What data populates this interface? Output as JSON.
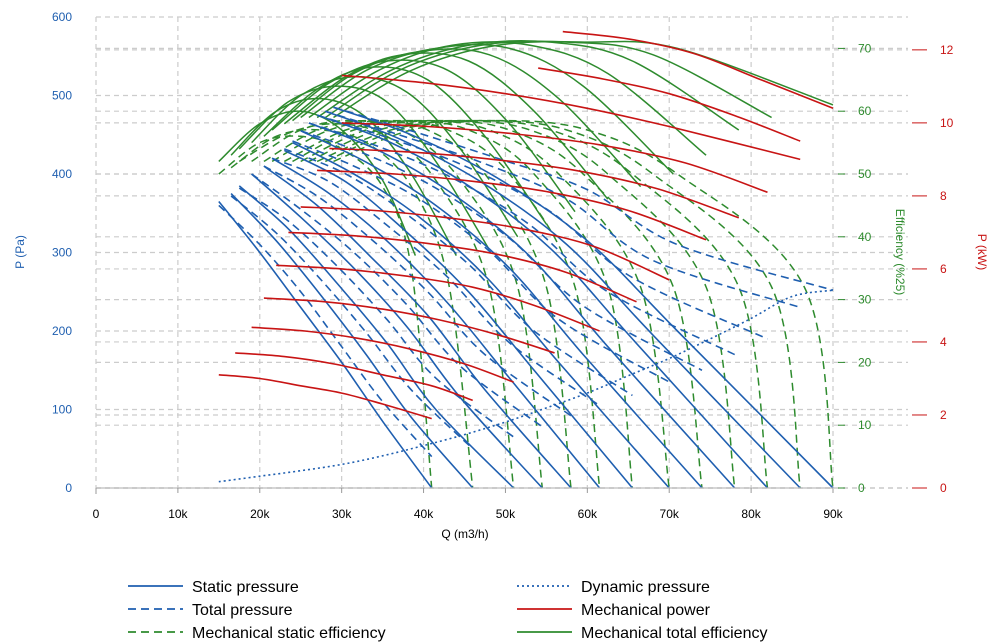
{
  "chart_data": {
    "type": "line",
    "xlabel": "Q (m3/h)",
    "ylabel_left": "P (Pa)",
    "ylabel_eff": "Efficiency (%25)",
    "ylabel_power": "P (kW)",
    "xlim": [
      0,
      90000
    ],
    "ylim_pressure": [
      0,
      600
    ],
    "ylim_eff": [
      0,
      75
    ],
    "ylim_power": [
      0,
      12.9
    ],
    "x_ticks": [
      0,
      10000,
      20000,
      30000,
      40000,
      50000,
      60000,
      70000,
      80000,
      90000
    ],
    "x_tick_labels": [
      "0",
      "10k",
      "20k",
      "30k",
      "40k",
      "50k",
      "60k",
      "70k",
      "80k",
      "90k"
    ],
    "y_ticks_pressure": [
      0,
      100,
      200,
      300,
      400,
      500,
      600
    ],
    "y_ticks_eff": [
      0,
      10,
      20,
      30,
      40,
      50,
      60,
      70
    ],
    "y_ticks_power": [
      0,
      2,
      4,
      6,
      8,
      10,
      12
    ],
    "grid": true,
    "colors": {
      "pressure": "#1f5fb0",
      "efficiency": "#2e8b2e",
      "power": "#c81414",
      "grid": "#cccccc",
      "eff_axis": "#2e8b2e",
      "power_axis": "#c81414",
      "pressure_axis": "#1f5fb0"
    },
    "legend": {
      "position": "bottom",
      "entries": [
        {
          "label": "Static pressure",
          "color": "#1f5fb0",
          "dash": "solid"
        },
        {
          "label": "Dynamic pressure",
          "color": "#1f5fb0",
          "dash": "dotted"
        },
        {
          "label": "Total pressure",
          "color": "#1f5fb0",
          "dash": "dashed"
        },
        {
          "label": "Mechanical power",
          "color": "#c81414",
          "dash": "solid"
        },
        {
          "label": "Mechanical static efficiency",
          "color": "#2e8b2e",
          "dash": "dashed"
        },
        {
          "label": "Mechanical total efficiency",
          "color": "#2e8b2e",
          "dash": "solid"
        }
      ]
    },
    "dynamic_pressure": {
      "x": [
        15000,
        20000,
        25000,
        30000,
        35000,
        40000,
        45000,
        50000,
        55000,
        60000,
        65000,
        70000,
        75000,
        80000,
        85000,
        90000
      ],
      "y": [
        8,
        15,
        22,
        30,
        41,
        54,
        68,
        84,
        102,
        121,
        143,
        165,
        190,
        216,
        244,
        252
      ]
    },
    "static_pressure_series": [
      {
        "x": [
          15000,
          20000,
          25000,
          30000,
          35000,
          41000
        ],
        "y": [
          365,
          300,
          230,
          160,
          85,
          0
        ]
      },
      {
        "x": [
          16500,
          22000,
          27500,
          33000,
          38500,
          46000
        ],
        "y": [
          375,
          315,
          245,
          170,
          90,
          0
        ]
      },
      {
        "x": [
          17500,
          23500,
          29500,
          35500,
          41500,
          51000
        ],
        "y": [
          385,
          330,
          260,
          185,
          100,
          0
        ]
      },
      {
        "x": [
          19000,
          25000,
          31500,
          38000,
          44500,
          54500
        ],
        "y": [
          400,
          345,
          280,
          205,
          115,
          0
        ]
      },
      {
        "x": [
          20500,
          27000,
          33500,
          40500,
          47500,
          58000
        ],
        "y": [
          410,
          360,
          295,
          220,
          125,
          0
        ]
      },
      {
        "x": [
          21500,
          28500,
          35500,
          43000,
          50500,
          61500
        ],
        "y": [
          420,
          375,
          315,
          235,
          140,
          0
        ]
      },
      {
        "x": [
          23000,
          30500,
          37500,
          45500,
          53500,
          65500
        ],
        "y": [
          430,
          390,
          330,
          250,
          150,
          0
        ]
      },
      {
        "x": [
          24000,
          31500,
          39500,
          48000,
          56500,
          70000
        ],
        "y": [
          440,
          400,
          345,
          265,
          160,
          0
        ]
      },
      {
        "x": [
          25000,
          33000,
          41500,
          50500,
          59500,
          74000
        ],
        "y": [
          455,
          415,
          360,
          280,
          170,
          0
        ]
      },
      {
        "x": [
          26000,
          34500,
          43500,
          53000,
          62500,
          78000
        ],
        "y": [
          465,
          430,
          375,
          295,
          180,
          0
        ]
      },
      {
        "x": [
          27000,
          36000,
          45500,
          55500,
          65500,
          82000
        ],
        "y": [
          475,
          440,
          385,
          305,
          190,
          0
        ]
      },
      {
        "x": [
          28000,
          37000,
          47000,
          57500,
          68000,
          86000
        ],
        "y": [
          480,
          445,
          390,
          310,
          195,
          0
        ]
      },
      {
        "x": [
          29000,
          38500,
          49000,
          60000,
          71000,
          90000
        ],
        "y": [
          485,
          450,
          395,
          315,
          200,
          0
        ]
      }
    ],
    "total_pressure_series": [
      {
        "x": [
          15000,
          20000,
          25000,
          30000,
          35000,
          41000
        ],
        "y": [
          360,
          310,
          250,
          180,
          110,
          40
        ]
      },
      {
        "x": [
          16500,
          22000,
          27500,
          33000,
          38500,
          46000
        ],
        "y": [
          372,
          325,
          265,
          198,
          125,
          50
        ]
      },
      {
        "x": [
          17500,
          23500,
          29500,
          35500,
          41500,
          51000
        ],
        "y": [
          382,
          340,
          282,
          215,
          140,
          65
        ]
      },
      {
        "x": [
          19000,
          25000,
          31500,
          38000,
          44500,
          54500
        ],
        "y": [
          400,
          355,
          300,
          233,
          155,
          78
        ]
      },
      {
        "x": [
          20500,
          27000,
          33500,
          40500,
          47500,
          58000
        ],
        "y": [
          410,
          372,
          318,
          250,
          170,
          92
        ]
      },
      {
        "x": [
          21500,
          28500,
          35500,
          43000,
          50500,
          61500
        ],
        "y": [
          420,
          390,
          335,
          268,
          185,
          105
        ]
      },
      {
        "x": [
          23000,
          30500,
          37500,
          45500,
          53500,
          65500
        ],
        "y": [
          432,
          400,
          352,
          285,
          200,
          118
        ]
      },
      {
        "x": [
          24000,
          31500,
          39500,
          48000,
          56500,
          70000
        ],
        "y": [
          442,
          410,
          368,
          302,
          215,
          135
        ]
      },
      {
        "x": [
          25000,
          33000,
          41500,
          50500,
          59500,
          74000
        ],
        "y": [
          455,
          425,
          382,
          318,
          232,
          150
        ]
      },
      {
        "x": [
          26000,
          34500,
          43500,
          53000,
          62500,
          78000
        ],
        "y": [
          465,
          435,
          395,
          335,
          250,
          170
        ]
      },
      {
        "x": [
          27000,
          36000,
          45500,
          55500,
          65500,
          82000
        ],
        "y": [
          475,
          445,
          408,
          352,
          268,
          190
        ]
      },
      {
        "x": [
          28000,
          37000,
          47000,
          57500,
          68000,
          86000
        ],
        "y": [
          480,
          450,
          415,
          368,
          290,
          230
        ]
      },
      {
        "x": [
          29000,
          38500,
          49000,
          60000,
          71000,
          90000
        ],
        "y": [
          485,
          455,
          420,
          380,
          310,
          252
        ]
      }
    ],
    "power_series": [
      {
        "x": [
          15000,
          20000,
          25000,
          30000,
          35000,
          41000
        ],
        "y": [
          3.1,
          3.0,
          2.8,
          2.6,
          2.3,
          1.9
        ]
      },
      {
        "x": [
          17000,
          23000,
          29000,
          35000,
          41000,
          46000
        ],
        "y": [
          3.7,
          3.6,
          3.4,
          3.1,
          2.8,
          2.4
        ]
      },
      {
        "x": [
          19000,
          25500,
          32000,
          38500,
          45000,
          51000
        ],
        "y": [
          4.4,
          4.3,
          4.1,
          3.8,
          3.4,
          2.9
        ]
      },
      {
        "x": [
          20500,
          28000,
          35000,
          42000,
          49000,
          56000
        ],
        "y": [
          5.2,
          5.1,
          4.9,
          4.6,
          4.2,
          3.7
        ]
      },
      {
        "x": [
          22000,
          30000,
          38000,
          46000,
          53500,
          61500
        ],
        "y": [
          6.1,
          6.0,
          5.8,
          5.5,
          5.0,
          4.3
        ]
      },
      {
        "x": [
          23500,
          32000,
          40500,
          49000,
          57500,
          66000
        ],
        "y": [
          7.0,
          6.9,
          6.7,
          6.4,
          5.9,
          5.1
        ]
      },
      {
        "x": [
          25000,
          34000,
          43000,
          52000,
          61000,
          70000
        ],
        "y": [
          7.7,
          7.6,
          7.4,
          7.1,
          6.6,
          5.7
        ]
      },
      {
        "x": [
          27000,
          36500,
          46000,
          55500,
          65000,
          74500
        ],
        "y": [
          8.7,
          8.6,
          8.4,
          8.1,
          7.6,
          6.8
        ]
      },
      {
        "x": [
          28500,
          38500,
          48500,
          58500,
          68500,
          78500
        ],
        "y": [
          9.3,
          9.2,
          9.0,
          8.7,
          8.2,
          7.4
        ]
      },
      {
        "x": [
          30000,
          40500,
          51000,
          61500,
          72000,
          82000
        ],
        "y": [
          10.0,
          9.9,
          9.7,
          9.4,
          8.9,
          8.1
        ]
      },
      {
        "x": [
          30000,
          40000,
          50000,
          60000,
          70000,
          86000
        ],
        "y": [
          11.3,
          11.1,
          10.8,
          10.4,
          9.9,
          9.0
        ]
      },
      {
        "x": [
          54000,
          62000,
          70000,
          78000,
          86000
        ],
        "y": [
          11.5,
          11.2,
          10.8,
          10.2,
          9.5
        ]
      },
      {
        "x": [
          57000,
          65000,
          73000,
          81000,
          90000
        ],
        "y": [
          12.5,
          12.3,
          11.9,
          11.2,
          10.4
        ]
      }
    ],
    "static_efficiency_series": [
      {
        "x": [
          15000,
          20000,
          25000,
          30000,
          35000,
          38500,
          41000
        ],
        "y": [
          50,
          55,
          56,
          54,
          48,
          35,
          0
        ]
      },
      {
        "x": [
          16500,
          22000,
          27500,
          33000,
          38500,
          43000,
          46000
        ],
        "y": [
          51,
          56,
          57,
          55,
          48,
          33,
          0
        ]
      },
      {
        "x": [
          17500,
          23500,
          29500,
          35500,
          41500,
          48000,
          51000
        ],
        "y": [
          52,
          56.5,
          58,
          56,
          49,
          32,
          0
        ]
      },
      {
        "x": [
          19000,
          25000,
          31500,
          38000,
          44500,
          51500,
          54500
        ],
        "y": [
          52,
          57,
          58.5,
          56.5,
          49,
          32,
          0
        ]
      },
      {
        "x": [
          20500,
          27000,
          33500,
          40500,
          47500,
          55000,
          58000
        ],
        "y": [
          52,
          57,
          58.5,
          57,
          50,
          32,
          0
        ]
      },
      {
        "x": [
          21500,
          28500,
          35500,
          43000,
          50500,
          58500,
          61500
        ],
        "y": [
          52,
          57,
          58.5,
          57,
          50,
          32,
          0
        ]
      },
      {
        "x": [
          23000,
          30500,
          37500,
          45500,
          53500,
          62500,
          65500
        ],
        "y": [
          52,
          57,
          58.5,
          57,
          50,
          32,
          0
        ]
      },
      {
        "x": [
          24000,
          31500,
          39500,
          48000,
          56500,
          66500,
          70000
        ],
        "y": [
          52,
          57,
          58.5,
          57,
          50,
          32,
          0
        ]
      },
      {
        "x": [
          25000,
          33000,
          41500,
          50500,
          59500,
          70500,
          74000
        ],
        "y": [
          52,
          57,
          58.5,
          57,
          50,
          32,
          0
        ]
      },
      {
        "x": [
          26000,
          34500,
          43500,
          53000,
          62500,
          74500,
          78000
        ],
        "y": [
          52,
          57,
          58.5,
          57,
          50,
          32,
          0
        ]
      },
      {
        "x": [
          27000,
          36000,
          45500,
          55500,
          65500,
          78500,
          82000
        ],
        "y": [
          52,
          57,
          58.5,
          57,
          50,
          32,
          0
        ]
      },
      {
        "x": [
          28000,
          37000,
          47000,
          57500,
          68000,
          82500,
          86000
        ],
        "y": [
          52,
          57,
          58.5,
          57,
          50,
          32,
          0
        ]
      },
      {
        "x": [
          29000,
          38500,
          49000,
          60000,
          71000,
          86500,
          90000
        ],
        "y": [
          52,
          57,
          58.5,
          57,
          50,
          32,
          0
        ]
      }
    ],
    "total_efficiency_series": [
      {
        "x": [
          15000,
          20000,
          25000,
          30000,
          35000,
          39000
        ],
        "y": [
          52,
          58,
          60,
          57,
          49,
          37
        ]
      },
      {
        "x": [
          16500,
          22000,
          27500,
          33000,
          38500,
          44000
        ],
        "y": [
          53,
          60,
          62,
          59,
          50,
          37
        ]
      },
      {
        "x": [
          17500,
          23500,
          29500,
          35500,
          41500,
          48000
        ],
        "y": [
          54,
          61.5,
          64,
          61.5,
          52,
          38
        ]
      },
      {
        "x": [
          19000,
          25000,
          31500,
          38000,
          44500,
          51500
        ],
        "y": [
          55,
          62.5,
          65.5,
          63,
          54,
          40
        ]
      },
      {
        "x": [
          20500,
          27000,
          33500,
          40500,
          47500,
          55000
        ],
        "y": [
          56,
          63.5,
          67,
          65,
          56,
          42
        ]
      },
      {
        "x": [
          21500,
          28500,
          35500,
          43000,
          50500,
          58500
        ],
        "y": [
          57,
          64.5,
          68,
          66.5,
          58,
          44
        ]
      },
      {
        "x": [
          23000,
          30500,
          37500,
          45500,
          53500,
          62500
        ],
        "y": [
          58,
          65.5,
          69,
          68,
          60,
          46
        ]
      },
      {
        "x": [
          24000,
          31500,
          39500,
          48000,
          56500,
          66500
        ],
        "y": [
          58.5,
          66,
          69.5,
          69,
          62,
          48
        ]
      },
      {
        "x": [
          25000,
          33000,
          41500,
          50500,
          59500,
          70500
        ],
        "y": [
          59,
          66.5,
          70,
          70,
          64,
          50
        ]
      },
      {
        "x": [
          26000,
          34500,
          43500,
          53000,
          62500,
          74500
        ],
        "y": [
          59,
          66.5,
          70.5,
          70.5,
          66,
          53
        ]
      },
      {
        "x": [
          27000,
          36000,
          45500,
          55500,
          65500,
          78500
        ],
        "y": [
          59,
          66.5,
          70.5,
          71,
          68,
          57
        ]
      },
      {
        "x": [
          28000,
          37000,
          47000,
          57500,
          68000,
          82500
        ],
        "y": [
          59,
          66.5,
          70.5,
          71,
          69,
          59
        ]
      },
      {
        "x": [
          29000,
          38500,
          49000,
          60000,
          71000,
          90000
        ],
        "y": [
          59,
          66.5,
          70.5,
          71,
          70,
          61
        ]
      }
    ]
  }
}
